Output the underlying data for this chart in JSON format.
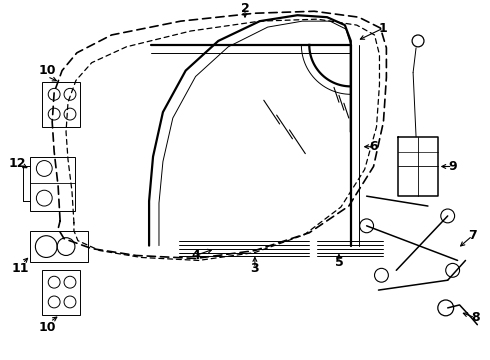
{
  "bg_color": "#ffffff",
  "lw_thick": 1.6,
  "lw_med": 1.1,
  "lw_thin": 0.7,
  "label_fs": 9,
  "components": {
    "door_outer1_x": [
      0.52,
      0.5,
      0.52,
      0.6,
      0.8,
      1.3,
      2.1,
      2.9,
      3.45,
      3.75,
      3.82,
      3.82,
      3.78,
      3.6,
      3.3,
      2.7,
      2.0,
      1.3,
      0.8,
      0.58,
      0.52
    ],
    "door_outer1_y": [
      2.2,
      3.5,
      5.2,
      6.5,
      7.5,
      8.4,
      8.95,
      9.25,
      9.35,
      9.28,
      8.8,
      7.0,
      5.0,
      3.4,
      2.5,
      2.0,
      1.7,
      1.65,
      1.75,
      2.0,
      2.2
    ],
    "door_outer2_x": [
      0.65,
      0.63,
      0.65,
      0.73,
      0.93,
      1.42,
      2.15,
      2.92,
      3.42,
      3.68,
      3.72,
      3.72,
      3.68,
      3.5,
      3.22,
      2.65,
      2.0,
      1.35,
      0.9,
      0.7,
      0.65
    ],
    "door_outer2_y": [
      2.2,
      3.4,
      5.0,
      6.3,
      7.3,
      8.2,
      8.78,
      9.08,
      9.2,
      9.12,
      8.65,
      7.0,
      5.1,
      3.5,
      2.6,
      2.1,
      1.82,
      1.77,
      1.88,
      2.05,
      2.2
    ],
    "win_frame_x": [
      1.48,
      1.48,
      1.55,
      1.7,
      2.05,
      2.55,
      3.0,
      3.28,
      3.42,
      3.45,
      3.45,
      3.45,
      3.43,
      3.38,
      3.28,
      3.1,
      2.65,
      2.1,
      1.7,
      1.55,
      1.48
    ],
    "win_frame_y": [
      3.1,
      3.9,
      5.1,
      6.3,
      7.4,
      8.25,
      8.75,
      8.95,
      9.0,
      8.8,
      7.5,
      6.0,
      5.0,
      4.2,
      3.65,
      3.25,
      3.05,
      3.0,
      3.02,
      3.05,
      3.1
    ],
    "win_inner_x": [
      1.6,
      1.6,
      1.67,
      1.82,
      2.15,
      2.62,
      3.05,
      3.3,
      3.44,
      3.47,
      3.47,
      3.47
    ],
    "win_inner_y": [
      3.12,
      3.85,
      5.0,
      6.2,
      7.3,
      8.15,
      8.65,
      8.85,
      8.9,
      8.72,
      7.5,
      6.0
    ]
  }
}
